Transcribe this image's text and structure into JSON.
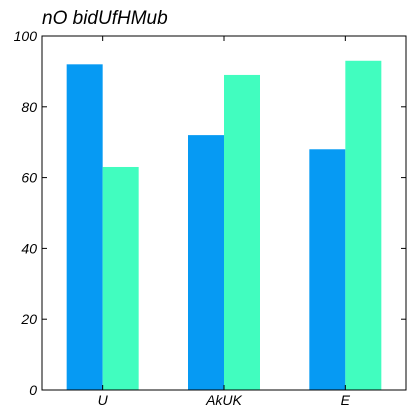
{
  "chart_data": {
    "type": "bar",
    "title": "nO bidUfHMub",
    "xlabel": "",
    "ylabel": "",
    "categories": [
      "U",
      "AkUK",
      "E"
    ],
    "series": [
      {
        "values": [
          92,
          72,
          68
        ],
        "color": "#069af3"
      },
      {
        "values": [
          63,
          89,
          93
        ],
        "color": "#41fdbf"
      }
    ],
    "ylim": [
      0,
      100
    ],
    "yticks": [
      0,
      20,
      40,
      60,
      80,
      100
    ],
    "grid": false,
    "legend": "none"
  }
}
